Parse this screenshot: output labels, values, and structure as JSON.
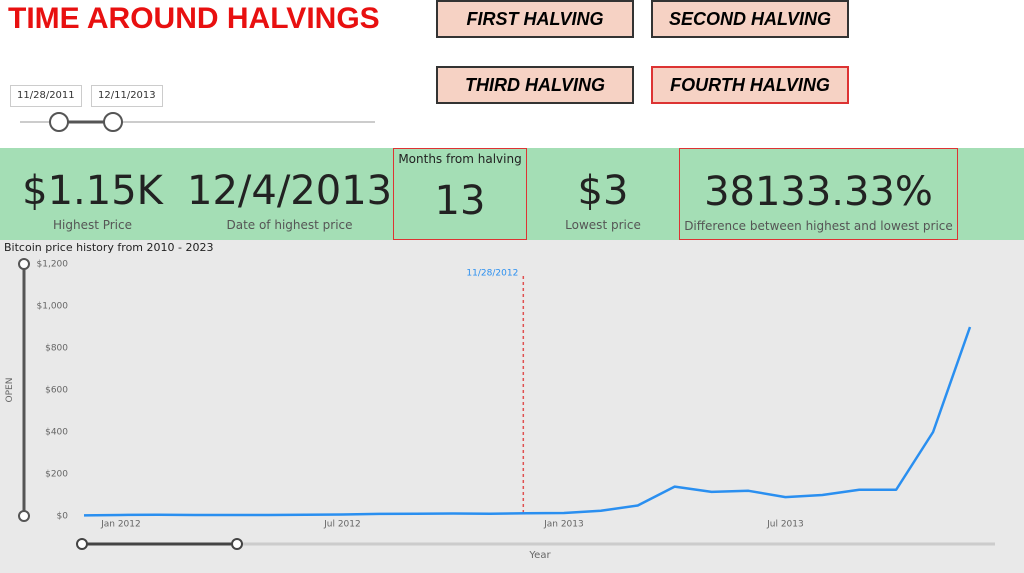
{
  "header": {
    "title": "TIME AROUND HALVINGS"
  },
  "date_range": {
    "start": "11/28/2011",
    "end": "12/11/2013"
  },
  "buttons": [
    "FIRST HALVING",
    "SECOND HALVING",
    "THIRD HALVING",
    "FOURTH HALVING"
  ],
  "cards": [
    {
      "value": "$1.15K",
      "label": "Highest Price"
    },
    {
      "value": "12/4/2013",
      "label": "Date of highest price"
    },
    {
      "value": "13",
      "label": "Months from halving"
    },
    {
      "value": "$3",
      "label": "Lowest price"
    },
    {
      "value": "38133.33%",
      "label": "Difference between highest and lowest price"
    }
  ],
  "chart_data": {
    "type": "line",
    "title": "Bitcoin price history from 2010 - 2023",
    "y_label": "OPEN",
    "x_label": "Year",
    "color": "#2a8ff0",
    "x": [
      "2011-12",
      "2012-01",
      "2012-02",
      "2012-03",
      "2012-04",
      "2012-05",
      "2012-06",
      "2012-07",
      "2012-08",
      "2012-09",
      "2012-10",
      "2012-11",
      "2012-12",
      "2013-01",
      "2013-02",
      "2013-03",
      "2013-04",
      "2013-05",
      "2013-06",
      "2013-07",
      "2013-08",
      "2013-09",
      "2013-10",
      "2013-11",
      "2013-12"
    ],
    "values": [
      3,
      5,
      6,
      5,
      5,
      5,
      6,
      7,
      10,
      11,
      12,
      11,
      13,
      14,
      25,
      50,
      140,
      115,
      120,
      90,
      100,
      125,
      125,
      400,
      900
    ],
    "xlim": [
      "2011-12",
      "2013-12"
    ],
    "xticks": [
      {
        "value": "2012-01",
        "label": "Jan 2012"
      },
      {
        "value": "2012-07",
        "label": "Jul 2012"
      },
      {
        "value": "2013-01",
        "label": "Jan 2013"
      },
      {
        "value": "2013-07",
        "label": "Jul 2013"
      }
    ],
    "ylim": [
      0,
      1200
    ],
    "yticks": [
      {
        "value": 0,
        "label": "$0"
      },
      {
        "value": 200,
        "label": "$200"
      },
      {
        "value": 400,
        "label": "$400"
      },
      {
        "value": 600,
        "label": "$600"
      },
      {
        "value": 800,
        "label": "$800"
      },
      {
        "value": 1000,
        "label": "$1,000"
      },
      {
        "value": 1200,
        "label": "$1,200"
      }
    ],
    "annotation": {
      "label": "11/28/2012",
      "color": "#e05050"
    }
  }
}
